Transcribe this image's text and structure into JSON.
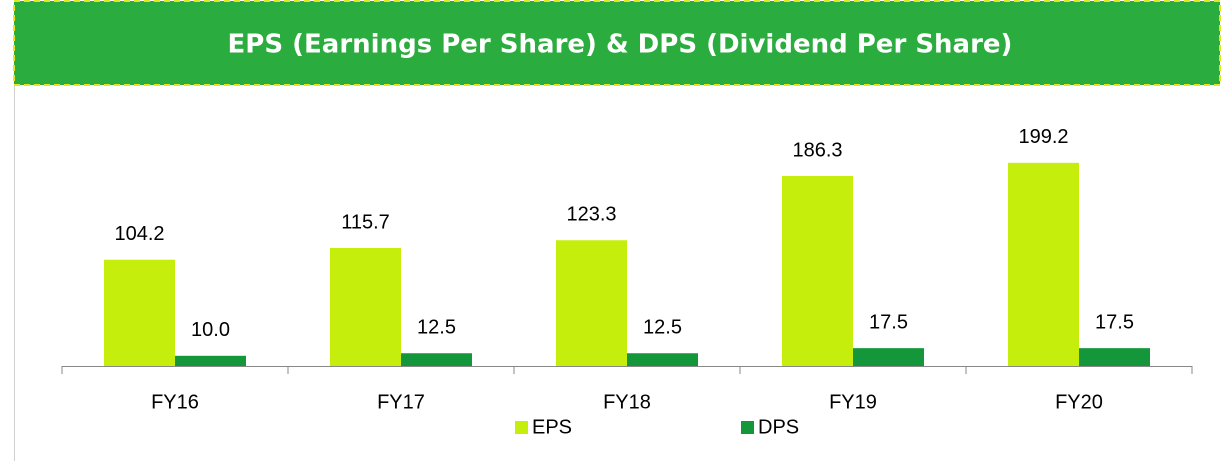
{
  "chart_data": {
    "type": "bar",
    "title": "EPS (Earnings Per Share) & DPS (Dividend Per Share)",
    "categories": [
      "FY16",
      "FY17",
      "FY18",
      "FY19",
      "FY20"
    ],
    "series": [
      {
        "name": "EPS",
        "color": "#c5ee0c",
        "values": [
          104.2,
          115.7,
          123.3,
          186.3,
          199.2
        ],
        "value_labels": [
          "104.2",
          "115.7",
          "123.3",
          "186.3",
          "199.2"
        ]
      },
      {
        "name": "DPS",
        "color": "#14963a",
        "values": [
          10,
          12.5,
          12.5,
          17.5,
          17.5
        ],
        "value_labels": [
          "10.0",
          "12.5",
          "12.5",
          "17.5",
          "17.5"
        ]
      }
    ],
    "legend": "bottom"
  }
}
